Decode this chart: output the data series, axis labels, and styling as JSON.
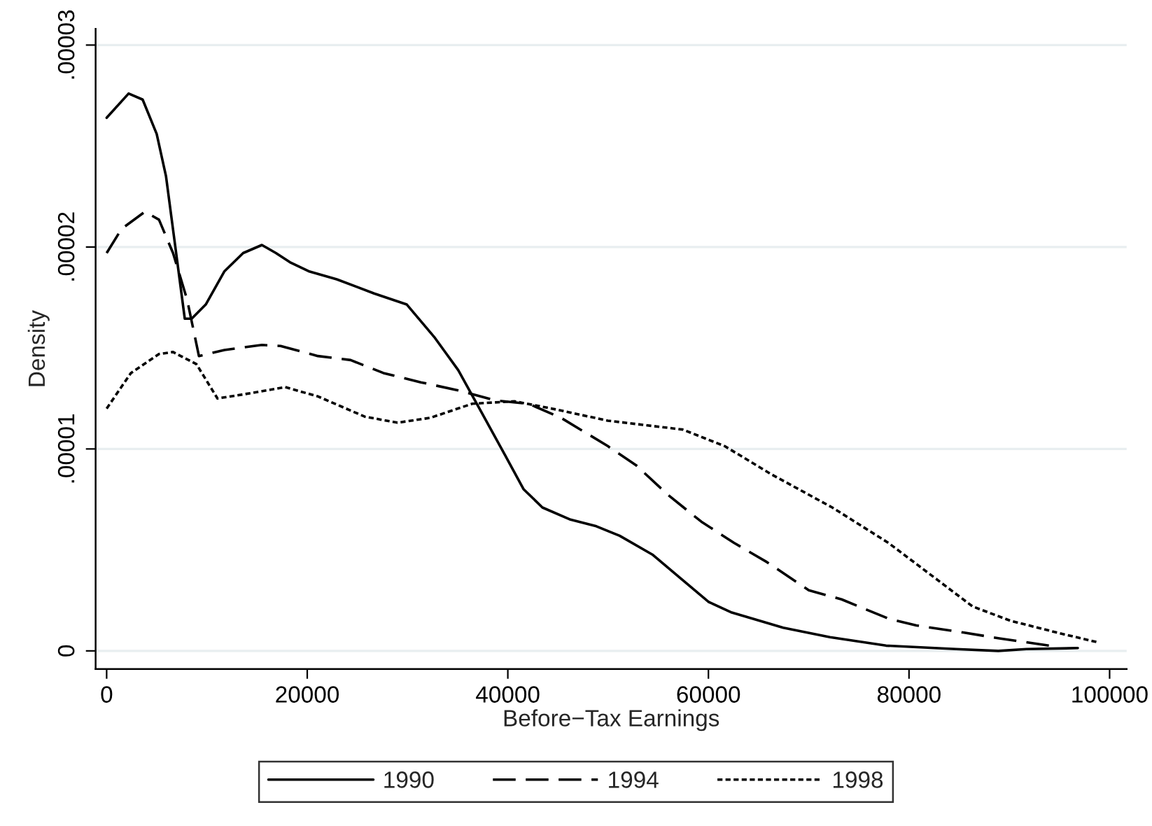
{
  "chart_data": {
    "type": "line",
    "xlabel": "Before−Tax Earnings",
    "ylabel": "Density",
    "xlim": [
      -1100,
      101700
    ],
    "xticks": [
      0,
      20000,
      40000,
      60000,
      80000,
      100000
    ],
    "ylim": [
      -9e-07,
      3.08e-05
    ],
    "yticks": [
      0,
      {
        "value": 1e-05,
        "label": ".00001"
      },
      {
        "value": 2e-05,
        "label": ".00002"
      },
      {
        "value": 3e-05,
        "label": ".00003"
      }
    ],
    "grid": "y",
    "legend": "bottom",
    "marker": "none",
    "series": [
      {
        "name": "1990",
        "color": "#000000",
        "line_style": "solid",
        "x": [
          0,
          2190,
          3590,
          4990,
          5920,
          6850,
          7790,
          8480,
          9880,
          11750,
          13610,
          15480,
          16880,
          18270,
          20140,
          22940,
          26670,
          29930,
          32730,
          35060,
          37390,
          39720,
          41580,
          43450,
          46250,
          48830,
          51150,
          54410,
          57200,
          60000,
          62330,
          67460,
          72120,
          77710,
          84700,
          88900,
          91700,
          96830
        ],
        "values": [
          2.64e-05,
          2.76e-05,
          2.73e-05,
          2.56e-05,
          2.35e-05,
          2e-05,
          1.645e-05,
          1.645e-05,
          1.715e-05,
          1.88e-05,
          1.97e-05,
          2.01e-05,
          1.97e-05,
          1.925e-05,
          1.88e-05,
          1.84e-05,
          1.77e-05,
          1.715e-05,
          1.55e-05,
          1.39e-05,
          1.18e-05,
          9.7e-06,
          8e-06,
          7.1e-06,
          6.5e-06,
          6.17e-06,
          5.7e-06,
          4.77e-06,
          3.6e-06,
          2.43e-06,
          1.9e-06,
          1.15e-06,
          6.8e-07,
          2.6e-07,
          9e-08,
          0,
          9e-08,
          1.4e-07
        ]
      },
      {
        "name": "1994",
        "color": "#000000",
        "line_style": "dashed",
        "x": [
          0,
          1490,
          3820,
          5220,
          6620,
          8020,
          8950,
          9200,
          11750,
          15480,
          17340,
          21070,
          24330,
          27600,
          31330,
          35060,
          38790,
          42050,
          45310,
          49970,
          52770,
          56030,
          59290,
          62550,
          65820,
          70010,
          73280,
          77940,
          80740,
          85400,
          89130,
          94720
        ],
        "values": [
          1.97e-05,
          2.09e-05,
          2.175e-05,
          2.135e-05,
          1.97e-05,
          1.74e-05,
          1.52e-05,
          1.46e-05,
          1.49e-05,
          1.515e-05,
          1.51e-05,
          1.46e-05,
          1.44e-05,
          1.376e-05,
          1.33e-05,
          1.29e-05,
          1.24e-05,
          1.224e-05,
          1.154e-05,
          1.014e-05,
          9.2e-06,
          7.7e-06,
          6.4e-06,
          5.35e-06,
          4.4e-06,
          3e-06,
          2.55e-06,
          1.6e-06,
          1.26e-06,
          9.1e-07,
          6.1e-07,
          2.1e-07
        ]
      },
      {
        "name": "1998",
        "color": "#000000",
        "line_style": "dotted",
        "x": [
          0,
          2420,
          5220,
          6620,
          8950,
          11050,
          13610,
          17810,
          21070,
          25730,
          29000,
          32260,
          36460,
          40660,
          44380,
          49970,
          57430,
          61620,
          66290,
          72350,
          77940,
          82610,
          86340,
          90070,
          94720,
          98690
        ],
        "values": [
          1.2e-05,
          1.376e-05,
          1.47e-05,
          1.48e-05,
          1.42e-05,
          1.25e-05,
          1.27e-05,
          1.306e-05,
          1.26e-05,
          1.16e-05,
          1.13e-05,
          1.154e-05,
          1.224e-05,
          1.236e-05,
          1.2e-05,
          1.14e-05,
          1.096e-05,
          1.014e-05,
          8.74e-06,
          7.1e-06,
          5.35e-06,
          3.6e-06,
          2.2e-06,
          1.5e-06,
          9.1e-07,
          4.4e-07
        ]
      }
    ]
  }
}
